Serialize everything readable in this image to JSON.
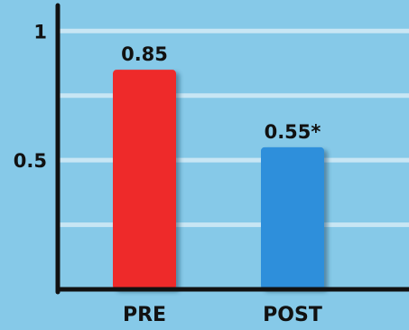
{
  "chart_data": {
    "type": "bar",
    "categories": [
      "PRE",
      "POST"
    ],
    "values": [
      0.85,
      0.55
    ],
    "value_labels": [
      "0.85",
      "0.55*"
    ],
    "ytick_values": [
      0.5,
      1
    ],
    "ytick_labels": [
      "0.5",
      "1"
    ],
    "ylim": [
      0,
      1.12
    ],
    "grid": true,
    "colors": {
      "background": "#86c9e8",
      "gridline": "#c8e6f4",
      "axis": "#111111",
      "bars": [
        "#ee2a2a",
        "#2f8fdb"
      ]
    }
  }
}
